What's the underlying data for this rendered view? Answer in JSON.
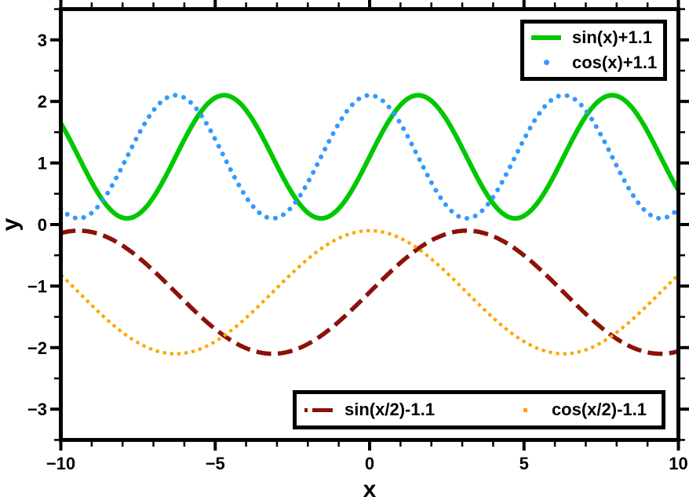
{
  "figure": {
    "background": "#FFFFFF",
    "frame_color": "#000000",
    "frame_line_width": 5,
    "tick_direction": "out",
    "ticks_all_sides": true
  },
  "chart_data": {
    "type": "line",
    "title": "",
    "xlabel": "x",
    "ylabel": "y",
    "xlim": [
      -10,
      10
    ],
    "ylim": [
      -3.5,
      3.5
    ],
    "x_major_ticks": [
      -10,
      -5,
      0,
      5,
      10
    ],
    "x_minor_tick_step": 1,
    "y_major_ticks": [
      -3,
      -2,
      -1,
      0,
      1,
      2,
      3
    ],
    "y_minor_tick_step": 0.5,
    "grid": false,
    "series": [
      {
        "label": "sin(x)+1.1",
        "fn": "sin",
        "x_scale": 1,
        "amplitude": 1,
        "y_offset": 1.1,
        "color": "#00C800",
        "style": "solid",
        "line_width": 6
      },
      {
        "label": "cos(x)+1.1",
        "fn": "cos",
        "x_scale": 1,
        "amplitude": 1,
        "y_offset": 1.1,
        "color": "#3399FF",
        "style": "dotted-round",
        "line_width": 6
      },
      {
        "label": "sin(x/2)-1.1",
        "fn": "sin",
        "x_scale": 0.5,
        "amplitude": 1,
        "y_offset": -1.1,
        "color": "#8B1209",
        "style": "dashed",
        "line_width": 5.5
      },
      {
        "label": "cos(x/2)-1.1",
        "fn": "cos",
        "x_scale": 0.5,
        "amplitude": 1,
        "y_offset": -1.1,
        "color": "#FFA500",
        "style": "dotted-square",
        "line_width": 4.2
      }
    ],
    "legends": [
      {
        "position": "top-right",
        "entries": [
          "sin(x)+1.1",
          "cos(x)+1.1"
        ]
      },
      {
        "position": "bottom-center",
        "entries": [
          "sin(x/2)-1.1",
          "cos(x/2)-1.1"
        ]
      }
    ]
  }
}
